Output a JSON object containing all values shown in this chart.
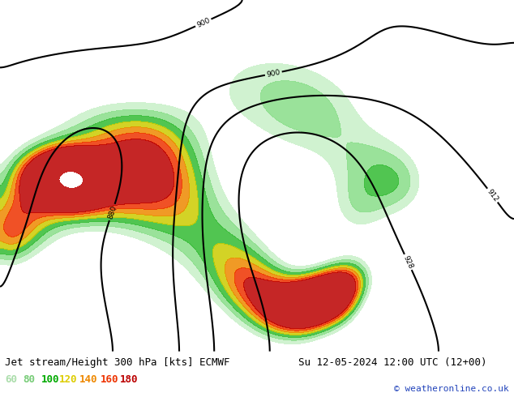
{
  "title_left": "Jet stream/Height 300 hPa [kts] ECMWF",
  "title_right": "Su 12-05-2024 12:00 UTC (12+00)",
  "copyright": "© weatheronline.co.uk",
  "legend_values": [
    "60",
    "80",
    "100",
    "120",
    "140",
    "160",
    "180"
  ],
  "legend_colors": [
    "#aaddaa",
    "#77cc77",
    "#00aa00",
    "#ddcc00",
    "#ee8800",
    "#ee3300",
    "#bb0000"
  ],
  "figsize": [
    6.34,
    4.9
  ],
  "dpi": 100,
  "title_fontsize": 9,
  "legend_fontsize": 9,
  "copyright_fontsize": 8,
  "extent": [
    -180,
    0,
    15,
    90
  ],
  "land_color": "#f0f0f0",
  "ocean_color": "#ffffff",
  "border_color": "#888888",
  "contour_color": "#000000",
  "bottom_bg": "#d8d8d8",
  "fill_levels": [
    60,
    80,
    100,
    120,
    140,
    160,
    180,
    999
  ],
  "fill_colors_list": [
    "#c8f0c8",
    "#88dd88",
    "#33bb33",
    "#cccc00",
    "#ee8800",
    "#ee3300",
    "#bb0000"
  ]
}
